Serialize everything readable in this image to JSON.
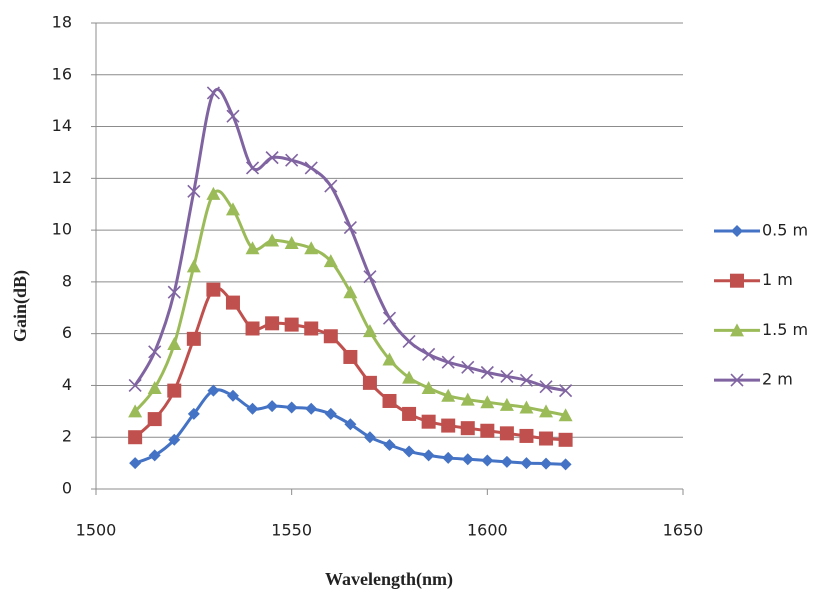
{
  "chart_data": {
    "type": "line",
    "xlabel": "Wavelength(nm)",
    "ylabel": "Gain(dB)",
    "x": [
      1510,
      1515,
      1520,
      1525,
      1530,
      1535,
      1540,
      1545,
      1550,
      1555,
      1560,
      1565,
      1570,
      1575,
      1580,
      1585,
      1590,
      1595,
      1600,
      1605,
      1610,
      1615,
      1620
    ],
    "series": [
      {
        "name": "0.5 m",
        "color": "#4472c4",
        "marker": "diamond",
        "values": [
          1.0,
          1.3,
          1.9,
          2.9,
          3.8,
          3.6,
          3.1,
          3.2,
          3.15,
          3.1,
          2.9,
          2.5,
          2.0,
          1.7,
          1.45,
          1.3,
          1.2,
          1.15,
          1.1,
          1.05,
          1.0,
          0.98,
          0.95
        ]
      },
      {
        "name": "1 m",
        "color": "#c0504d",
        "marker": "square",
        "values": [
          2.0,
          2.7,
          3.8,
          5.8,
          7.7,
          7.2,
          6.2,
          6.4,
          6.35,
          6.2,
          5.9,
          5.1,
          4.1,
          3.4,
          2.9,
          2.6,
          2.45,
          2.35,
          2.25,
          2.15,
          2.05,
          1.95,
          1.9
        ]
      },
      {
        "name": "1.5 m",
        "color": "#9bbb59",
        "marker": "triangle",
        "values": [
          3.0,
          3.9,
          5.6,
          8.6,
          11.4,
          10.8,
          9.3,
          9.6,
          9.5,
          9.3,
          8.8,
          7.6,
          6.1,
          5.0,
          4.3,
          3.9,
          3.6,
          3.45,
          3.35,
          3.25,
          3.15,
          3.0,
          2.85
        ]
      },
      {
        "name": "2 m",
        "color": "#8064a2",
        "marker": "x",
        "values": [
          4.0,
          5.3,
          7.6,
          11.5,
          15.3,
          14.4,
          12.4,
          12.8,
          12.7,
          12.4,
          11.7,
          10.1,
          8.2,
          6.6,
          5.7,
          5.2,
          4.9,
          4.7,
          4.5,
          4.35,
          4.2,
          3.95,
          3.8
        ]
      }
    ],
    "xlim": [
      1500,
      1650
    ],
    "xticks": [
      1500,
      1550,
      1600,
      1650
    ],
    "ylim": [
      0,
      18
    ],
    "yticks": [
      0,
      2,
      4,
      6,
      8,
      10,
      12,
      14,
      16,
      18
    ],
    "grid": true,
    "legend": "right"
  }
}
